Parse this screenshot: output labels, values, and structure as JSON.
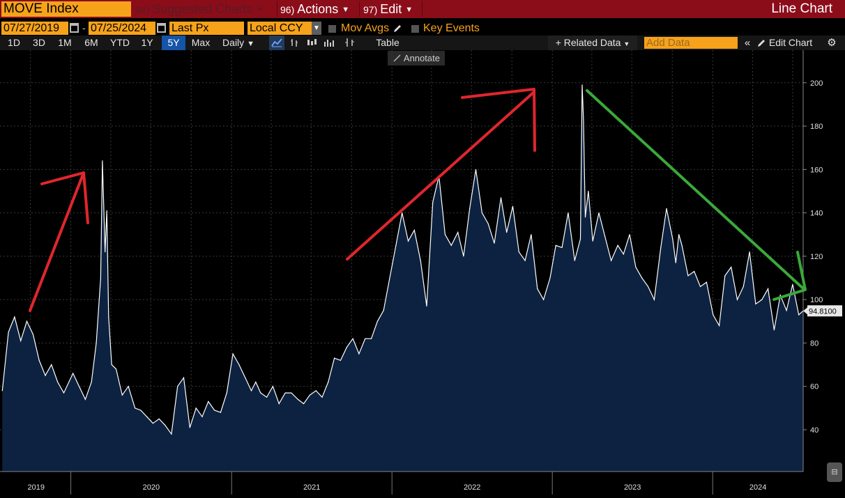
{
  "header": {
    "ticker": "MOVE Index",
    "suggested": {
      "num": "94)",
      "label": "Suggested Charts"
    },
    "actions": {
      "num": "96)",
      "label": "Actions"
    },
    "edit": {
      "num": "97)",
      "label": "Edit"
    },
    "chart_type": "Line Chart"
  },
  "controls": {
    "start_date": "07/27/2019",
    "end_date": "07/25/2024",
    "date_sep": "-",
    "field": "Last Px",
    "currency": "Local CCY",
    "mov_avgs": "Mov Avgs",
    "key_events": "Key Events"
  },
  "toolbar": {
    "periods": [
      "1D",
      "3D",
      "1M",
      "6M",
      "YTD",
      "1Y",
      "5Y",
      "Max"
    ],
    "active_period": "5Y",
    "frequency": "Daily",
    "table": "Table",
    "related_data": "+ Related Data",
    "add_data_placeholder": "Add Data",
    "edit_chart": "Edit Chart",
    "annotate": "Annotate",
    "collapse": "«"
  },
  "colors": {
    "accent_orange": "#f7a21b",
    "title_bar": "#8b0d1a",
    "line": "#ffffff",
    "area_fill": "#0c2240",
    "arrow_red": "#e0262d",
    "arrow_green": "#3aa93a"
  },
  "chart_data": {
    "type": "area",
    "x_tick_labels": [
      "2019",
      "2020",
      "2021",
      "2022",
      "2023",
      "2024"
    ],
    "x_range": [
      "2019-07-27",
      "2024-07-25"
    ],
    "ylim": [
      27,
      209
    ],
    "y_ticks": [
      40,
      60,
      80,
      100,
      120,
      140,
      160,
      180,
      200
    ],
    "grid": true,
    "last_value": "94.8100",
    "series": [
      {
        "x": [
          "2019-07-29",
          "2019-08-12",
          "2019-08-26",
          "2019-09-09",
          "2019-09-23",
          "2019-10-07",
          "2019-10-21",
          "2019-11-04",
          "2019-11-18",
          "2019-12-02",
          "2019-12-16",
          "2020-01-06",
          "2020-01-20",
          "2020-02-03",
          "2020-02-17",
          "2020-02-28",
          "2020-03-09",
          "2020-03-13",
          "2020-03-19",
          "2020-03-23",
          "2020-03-27",
          "2020-04-03",
          "2020-04-13",
          "2020-04-27",
          "2020-05-11",
          "2020-05-26",
          "2020-06-08",
          "2020-06-22",
          "2020-07-06",
          "2020-07-20",
          "2020-08-03",
          "2020-08-17",
          "2020-08-31",
          "2020-09-14",
          "2020-09-28",
          "2020-10-12",
          "2020-10-26",
          "2020-11-09",
          "2020-11-23",
          "2020-12-07",
          "2020-12-21",
          "2021-01-04",
          "2021-01-18",
          "2021-02-01",
          "2021-02-15",
          "2021-02-25",
          "2021-03-08",
          "2021-03-22",
          "2021-04-05",
          "2021-04-19",
          "2021-05-03",
          "2021-05-17",
          "2021-06-01",
          "2021-06-14",
          "2021-06-28",
          "2021-07-12",
          "2021-07-26",
          "2021-08-09",
          "2021-08-23",
          "2021-09-06",
          "2021-09-20",
          "2021-10-04",
          "2021-10-18",
          "2021-11-01",
          "2021-11-15",
          "2021-11-29",
          "2021-12-13",
          "2021-12-27",
          "2022-01-10",
          "2022-01-24",
          "2022-02-07",
          "2022-02-21",
          "2022-03-07",
          "2022-03-21",
          "2022-04-04",
          "2022-04-18",
          "2022-05-02",
          "2022-05-16",
          "2022-05-31",
          "2022-06-13",
          "2022-06-27",
          "2022-07-11",
          "2022-07-25",
          "2022-08-08",
          "2022-08-22",
          "2022-09-06",
          "2022-09-19",
          "2022-10-03",
          "2022-10-17",
          "2022-10-31",
          "2022-11-14",
          "2022-11-28",
          "2022-12-12",
          "2022-12-27",
          "2023-01-09",
          "2023-01-23",
          "2023-02-06",
          "2023-02-21",
          "2023-03-06",
          "2023-03-10",
          "2023-03-13",
          "2023-03-15",
          "2023-03-17",
          "2023-03-24",
          "2023-04-03",
          "2023-04-17",
          "2023-05-01",
          "2023-05-15",
          "2023-05-30",
          "2023-06-12",
          "2023-06-26",
          "2023-07-10",
          "2023-07-24",
          "2023-08-07",
          "2023-08-21",
          "2023-09-05",
          "2023-09-18",
          "2023-10-02",
          "2023-10-09",
          "2023-10-16",
          "2023-10-23",
          "2023-11-06",
          "2023-11-20",
          "2023-12-04",
          "2023-12-18",
          "2024-01-02",
          "2024-01-16",
          "2024-01-29",
          "2024-02-12",
          "2024-02-26",
          "2024-03-11",
          "2024-03-25",
          "2024-04-08",
          "2024-04-22",
          "2024-05-06",
          "2024-05-20",
          "2024-06-03",
          "2024-06-17",
          "2024-07-01",
          "2024-07-15",
          "2024-07-25"
        ],
        "values": [
          58,
          85,
          92,
          81,
          90,
          84,
          72,
          65,
          70,
          62,
          57,
          66,
          60,
          54,
          62,
          80,
          110,
          164,
          122,
          141,
          92,
          70,
          68,
          56,
          60,
          50,
          49,
          46,
          43,
          45,
          42,
          38,
          60,
          64,
          41,
          50,
          46,
          53,
          49,
          48,
          57,
          75,
          70,
          64,
          58,
          62,
          57,
          55,
          60,
          52,
          57,
          57,
          54,
          52,
          56,
          58,
          55,
          62,
          73,
          72,
          78,
          82,
          75,
          82,
          82,
          90,
          95,
          110,
          125,
          140,
          127,
          132,
          118,
          97,
          145,
          157,
          130,
          125,
          131,
          120,
          142,
          160,
          140,
          135,
          126,
          147,
          131,
          143,
          122,
          118,
          130,
          105,
          100,
          110,
          125,
          124,
          140,
          118,
          128,
          199,
          183,
          160,
          138,
          150,
          127,
          140,
          129,
          118,
          125,
          121,
          130,
          115,
          110,
          106,
          100,
          124,
          142,
          128,
          117,
          130,
          125,
          111,
          113,
          106,
          108,
          93,
          88,
          111,
          115,
          100,
          106,
          122,
          98,
          100,
          105,
          86,
          102,
          95,
          107,
          93,
          94.81
        ]
      }
    ]
  }
}
